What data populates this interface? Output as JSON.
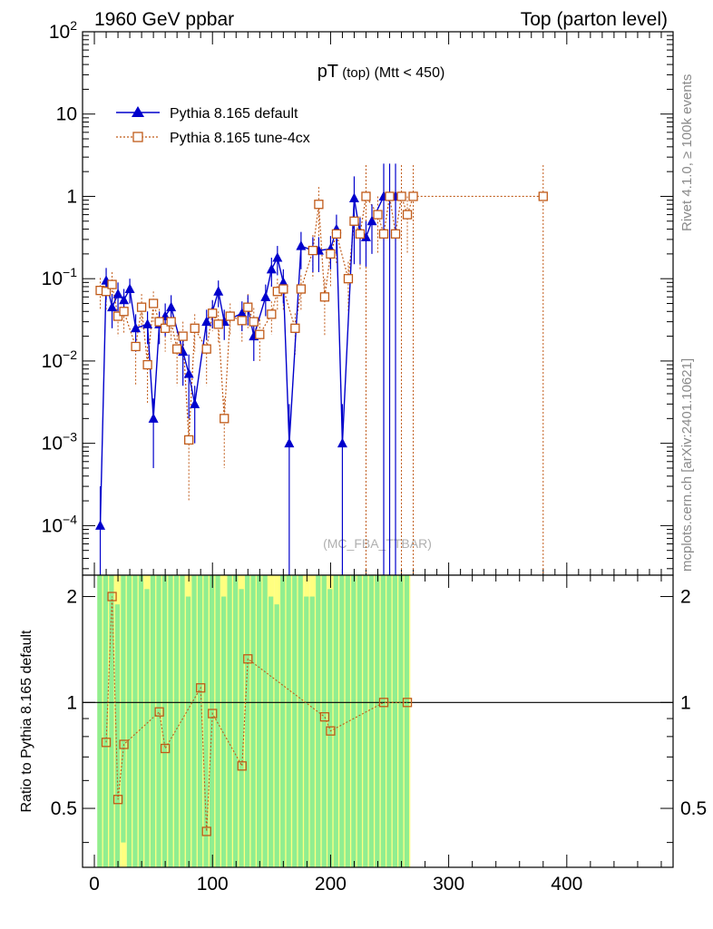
{
  "header": {
    "left": "1960 GeV ppbar",
    "right": "Top (parton level)"
  },
  "side_labels": {
    "rivet": "Rivet 4.1.0, ≥ 100k events",
    "mcplots": "mcplots.cern.ch [arXiv:2401.10621]"
  },
  "watermark": "(MC_FBA_TTBAR)",
  "chart_data": [
    {
      "type": "line",
      "title_main": "pT",
      "title_sub": " (top)",
      "title_cut": " (Mtt < 450)",
      "xlabel": "",
      "ylabel": "",
      "yscale": "log",
      "xlim": [
        -10,
        490
      ],
      "ylim": [
        2.5e-05,
        100
      ],
      "yticks": [
        {
          "v": 100,
          "base": "10",
          "exp": "2"
        },
        {
          "v": 10,
          "base": "10",
          "exp": ""
        },
        {
          "v": 1,
          "base": "1",
          "exp": ""
        },
        {
          "v": 0.1,
          "base": "10",
          "exp": "−1"
        },
        {
          "v": 0.01,
          "base": "10",
          "exp": "−2"
        },
        {
          "v": 0.001,
          "base": "10",
          "exp": "−3"
        },
        {
          "v": 0.0001,
          "base": "10",
          "exp": "−4"
        }
      ],
      "legend_position": "top-left",
      "series": [
        {
          "name": "Pythia 8.165 default",
          "color": "#0000cc",
          "marker": "triangle",
          "x": [
            5,
            10,
            15,
            20,
            25,
            30,
            35,
            45,
            50,
            55,
            60,
            65,
            75,
            80,
            85,
            95,
            100,
            105,
            110,
            125,
            130,
            135,
            145,
            150,
            155,
            160,
            165,
            175,
            185,
            190,
            200,
            205,
            210,
            220,
            225,
            230,
            235,
            245,
            250,
            255
          ],
          "y": [
            0.0001,
            0.095,
            0.045,
            0.065,
            0.055,
            0.075,
            0.025,
            0.028,
            0.002,
            0.028,
            0.035,
            0.045,
            0.013,
            0.007,
            0.003,
            0.03,
            0.04,
            0.07,
            0.03,
            0.038,
            0.045,
            0.02,
            0.06,
            0.13,
            0.18,
            0.09,
            0.001,
            0.25,
            0.22,
            0.22,
            0.23,
            0.4,
            0.001,
            0.95,
            0.35,
            0.32,
            0.5,
            1.0,
            1.0,
            1.0
          ],
          "err": [
            0.0002,
            0.04,
            0.02,
            0.025,
            0.02,
            0.025,
            0.012,
            0.012,
            0.0015,
            0.012,
            0.015,
            0.018,
            0.008,
            0.005,
            0.002,
            0.012,
            0.015,
            0.025,
            0.012,
            0.015,
            0.018,
            0.01,
            0.025,
            0.05,
            0.07,
            0.04,
            0.002,
            0.12,
            0.1,
            0.1,
            0.1,
            0.2,
            0.002,
            0.8,
            0.2,
            0.18,
            0.3,
            1.5,
            1.5,
            1.5
          ]
        },
        {
          "name": "Pythia 8.165 tune-4cx",
          "color": "#c05a18",
          "marker": "square",
          "x": [
            5,
            10,
            15,
            20,
            25,
            35,
            40,
            45,
            50,
            55,
            60,
            65,
            70,
            75,
            80,
            85,
            95,
            100,
            105,
            110,
            115,
            125,
            130,
            135,
            140,
            150,
            155,
            160,
            170,
            175,
            185,
            190,
            195,
            200,
            205,
            215,
            220,
            225,
            230,
            240,
            245,
            250,
            255,
            260,
            265,
            270,
            380
          ],
          "y": [
            0.072,
            0.07,
            0.085,
            0.035,
            0.04,
            0.015,
            0.045,
            0.009,
            0.05,
            0.03,
            0.025,
            0.03,
            0.014,
            0.02,
            0.0011,
            0.025,
            0.014,
            0.038,
            0.028,
            0.002,
            0.035,
            0.031,
            0.045,
            0.03,
            0.021,
            0.037,
            0.07,
            0.075,
            0.025,
            0.075,
            0.22,
            0.8,
            0.06,
            0.2,
            0.35,
            0.1,
            0.5,
            0.35,
            1.0,
            0.6,
            0.35,
            1.0,
            0.35,
            1.0,
            0.6,
            1.0,
            1.0
          ],
          "err": [
            0.03,
            0.03,
            0.035,
            0.015,
            0.018,
            0.01,
            0.02,
            0.006,
            0.02,
            0.013,
            0.012,
            0.013,
            0.009,
            0.01,
            0.0009,
            0.012,
            0.009,
            0.015,
            0.012,
            0.0015,
            0.015,
            0.014,
            0.02,
            0.014,
            0.011,
            0.016,
            0.03,
            0.035,
            0.013,
            0.035,
            0.12,
            0.5,
            0.04,
            0.12,
            0.2,
            0.06,
            0.3,
            0.22,
            1.4,
            0.4,
            0.2,
            1.4,
            0.2,
            1.4,
            0.4,
            1.4,
            1.4
          ]
        }
      ]
    },
    {
      "type": "line",
      "ylabel": "Ratio to Pythia 8.165 default",
      "xlabel": "",
      "xlim": [
        -10,
        490
      ],
      "ylim": [
        0.34,
        2.3
      ],
      "yscale": "log",
      "yticks": [
        0.5,
        1,
        2
      ],
      "xticks": [
        0,
        100,
        200,
        300,
        400
      ],
      "reference_line": 1,
      "bands": {
        "x": [
          5,
          10,
          15,
          20,
          25,
          30,
          35,
          40,
          45,
          50,
          55,
          60,
          65,
          70,
          75,
          80,
          85,
          90,
          95,
          100,
          105,
          110,
          115,
          120,
          125,
          130,
          135,
          140,
          145,
          150,
          155,
          160,
          165,
          170,
          175,
          180,
          185,
          190,
          195,
          200,
          205,
          210,
          215,
          220,
          225,
          230,
          235,
          240,
          245,
          250,
          255,
          260,
          265
        ],
        "green": [
          [
            0.34,
            2.3
          ],
          [
            0.34,
            2.3
          ],
          [
            0.34,
            2.3
          ],
          [
            0.34,
            1.9
          ],
          [
            0.4,
            2.3
          ],
          [
            0.34,
            2.3
          ],
          [
            0.34,
            2.3
          ],
          [
            0.34,
            2.3
          ],
          [
            0.34,
            2.1
          ],
          [
            0.34,
            2.3
          ],
          [
            0.34,
            2.3
          ],
          [
            0.34,
            2.3
          ],
          [
            0.34,
            2.3
          ],
          [
            0.34,
            2.3
          ],
          [
            0.34,
            2.3
          ],
          [
            0.34,
            2.0
          ],
          [
            0.34,
            2.3
          ],
          [
            0.34,
            2.3
          ],
          [
            0.34,
            2.3
          ],
          [
            0.34,
            2.3
          ],
          [
            0.34,
            2.3
          ],
          [
            0.34,
            2.0
          ],
          [
            0.34,
            2.3
          ],
          [
            0.34,
            2.3
          ],
          [
            0.34,
            2.1
          ],
          [
            0.34,
            2.3
          ],
          [
            0.34,
            2.3
          ],
          [
            0.34,
            2.3
          ],
          [
            0.34,
            2.3
          ],
          [
            0.34,
            2.0
          ],
          [
            0.34,
            1.9
          ],
          [
            0.34,
            2.3
          ],
          [
            0.34,
            2.3
          ],
          [
            0.34,
            2.3
          ],
          [
            0.34,
            2.3
          ],
          [
            0.34,
            2.0
          ],
          [
            0.34,
            2.0
          ],
          [
            0.34,
            2.3
          ],
          [
            0.34,
            2.3
          ],
          [
            0.34,
            2.1
          ],
          [
            0.34,
            2.3
          ],
          [
            0.34,
            2.3
          ],
          [
            0.34,
            2.3
          ],
          [
            0.34,
            2.3
          ],
          [
            0.34,
            2.3
          ],
          [
            0.34,
            2.3
          ],
          [
            0.34,
            2.3
          ],
          [
            0.34,
            2.3
          ],
          [
            0.34,
            2.3
          ],
          [
            0.34,
            2.3
          ],
          [
            0.34,
            2.3
          ],
          [
            0.34,
            2.3
          ],
          [
            0.34,
            2.3
          ]
        ],
        "yellow": [
          [
            0.34,
            2.3
          ],
          [
            0.34,
            2.3
          ],
          [
            0.34,
            2.3
          ],
          [
            0.34,
            2.3
          ],
          [
            0.34,
            2.3
          ],
          [
            0.34,
            2.3
          ],
          [
            0.34,
            2.3
          ],
          [
            0.34,
            2.3
          ],
          [
            0.34,
            2.3
          ],
          [
            0.34,
            2.3
          ],
          [
            0.34,
            2.3
          ],
          [
            0.34,
            2.3
          ],
          [
            0.34,
            2.3
          ],
          [
            0.34,
            2.3
          ],
          [
            0.34,
            2.3
          ],
          [
            0.34,
            2.3
          ],
          [
            0.34,
            2.3
          ],
          [
            0.34,
            2.3
          ],
          [
            0.34,
            2.3
          ],
          [
            0.34,
            2.3
          ],
          [
            0.34,
            2.3
          ],
          [
            0.34,
            2.3
          ],
          [
            0.34,
            2.3
          ],
          [
            0.34,
            2.3
          ],
          [
            0.34,
            2.3
          ],
          [
            0.34,
            2.3
          ],
          [
            0.34,
            2.3
          ],
          [
            0.34,
            2.3
          ],
          [
            0.34,
            2.3
          ],
          [
            0.34,
            2.3
          ],
          [
            0.34,
            2.3
          ],
          [
            0.34,
            2.3
          ],
          [
            0.34,
            2.3
          ],
          [
            0.34,
            2.3
          ],
          [
            0.34,
            2.3
          ],
          [
            0.34,
            2.3
          ],
          [
            0.34,
            2.3
          ],
          [
            0.34,
            2.3
          ],
          [
            0.34,
            2.3
          ],
          [
            0.34,
            2.3
          ],
          [
            0.34,
            2.3
          ],
          [
            0.34,
            2.3
          ],
          [
            0.34,
            2.3
          ],
          [
            0.34,
            2.3
          ],
          [
            0.34,
            2.3
          ],
          [
            0.34,
            2.3
          ],
          [
            0.34,
            2.3
          ],
          [
            0.34,
            2.3
          ],
          [
            0.34,
            2.3
          ],
          [
            0.34,
            2.3
          ],
          [
            0.34,
            2.3
          ],
          [
            0.34,
            2.3
          ],
          [
            0.34,
            2.3
          ]
        ],
        "green_color": "#90ee90",
        "yellow_color": "#ffff80"
      },
      "series": [
        {
          "name": "Pythia 8.165 tune-4cx / default",
          "color": "#c05a18",
          "marker": "square",
          "x": [
            10,
            15,
            20,
            25,
            55,
            60,
            90,
            95,
            100,
            125,
            130,
            195,
            200,
            245,
            265
          ],
          "y": [
            0.77,
            2.0,
            0.53,
            0.76,
            0.94,
            0.74,
            1.1,
            0.43,
            0.93,
            0.66,
            1.33,
            0.91,
            0.83,
            1.0,
            1.0
          ]
        }
      ]
    }
  ]
}
